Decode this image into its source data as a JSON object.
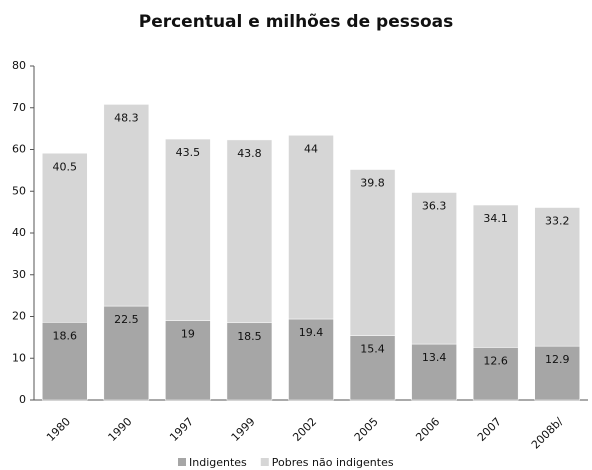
{
  "chart_data": {
    "type": "bar",
    "stacked": true,
    "title": "Percentual e milhões de pessoas",
    "categories": [
      "1980",
      "1990",
      "1997",
      "1999",
      "2002",
      "2005",
      "2006",
      "2007",
      "2008b/"
    ],
    "series": [
      {
        "name": "Indigentes",
        "color": "#a6a6a6",
        "values": [
          18.6,
          22.5,
          19,
          18.5,
          19.4,
          15.4,
          13.4,
          12.6,
          12.9
        ]
      },
      {
        "name": "Pobres não indigentes",
        "color": "#d6d6d6",
        "values": [
          40.5,
          48.3,
          43.5,
          43.8,
          44,
          39.8,
          36.3,
          34.1,
          33.2
        ]
      }
    ],
    "ylim": [
      0,
      80
    ],
    "yticks": [
      0,
      10,
      20,
      30,
      40,
      50,
      60,
      70,
      80
    ],
    "grid": false,
    "legend": "bottom"
  }
}
